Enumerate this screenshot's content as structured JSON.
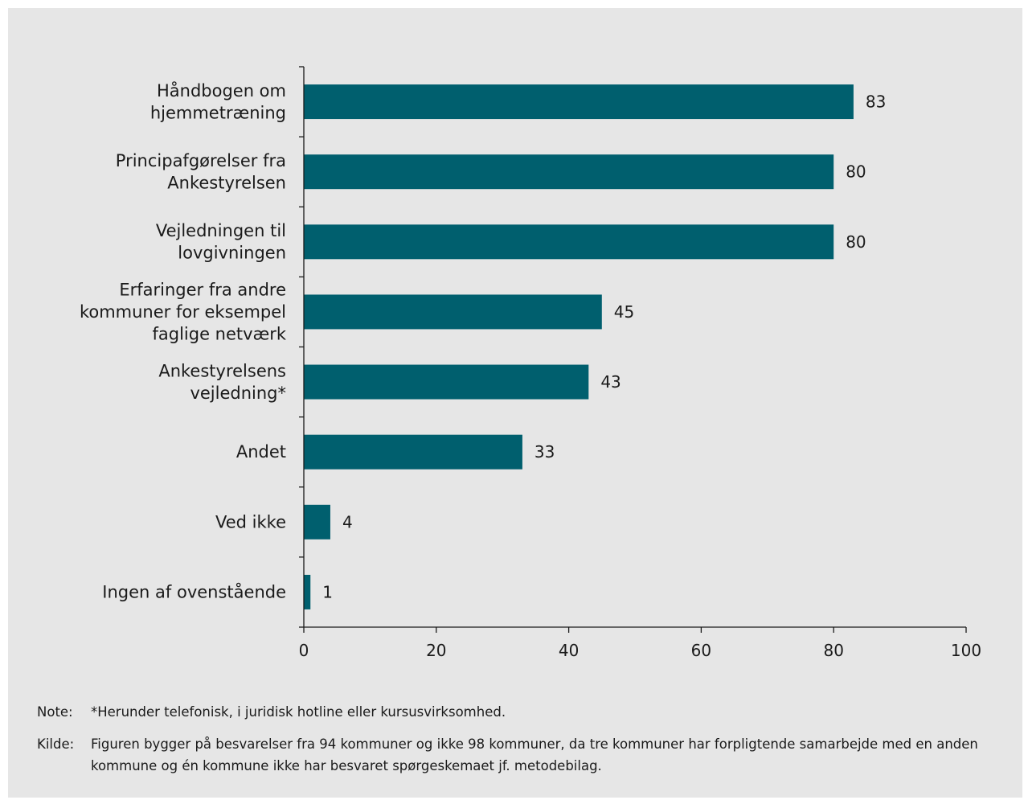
{
  "chart_data": {
    "type": "bar",
    "orientation": "horizontal",
    "categories": [
      [
        "Håndbogen om",
        "hjemmetræning"
      ],
      [
        "Principafgørelser fra",
        "Ankestyrelsen"
      ],
      [
        "Vejledningen til",
        "lovgivningen"
      ],
      [
        "Erfaringer fra andre",
        "kommuner for eksempel",
        "faglige netværk"
      ],
      [
        "Ankestyrelsens",
        "vejledning*"
      ],
      [
        "Andet"
      ],
      [
        "Ved ikke"
      ],
      [
        "Ingen af ovenstående"
      ]
    ],
    "values": [
      83,
      80,
      80,
      45,
      43,
      33,
      4,
      1
    ],
    "value_labels": [
      "83",
      "80",
      "80",
      "45",
      "43",
      "33",
      "4",
      "1"
    ],
    "xlim": [
      0,
      100
    ],
    "xticks": [
      0,
      20,
      40,
      60,
      80,
      100
    ],
    "xtick_labels": [
      "0",
      "20",
      "40",
      "60",
      "80",
      "100"
    ],
    "title": "",
    "xlabel": "",
    "ylabel": "",
    "grid": false,
    "bar_color": "#005f6e",
    "background_color": "#e6e6e6"
  },
  "notes": {
    "note_key": "Note:",
    "note_text": "*Herunder telefonisk, i juridisk hotline eller kursusvirksomhed.",
    "source_key": "Kilde:",
    "source_text": "Figuren bygger på besvarelser fra 94 kommuner og ikke 98 kommuner, da tre kommuner har forpligtende samarbejde med en anden kommune og én kommune ikke har besvaret spørgeskemaet jf. metodebilag."
  }
}
